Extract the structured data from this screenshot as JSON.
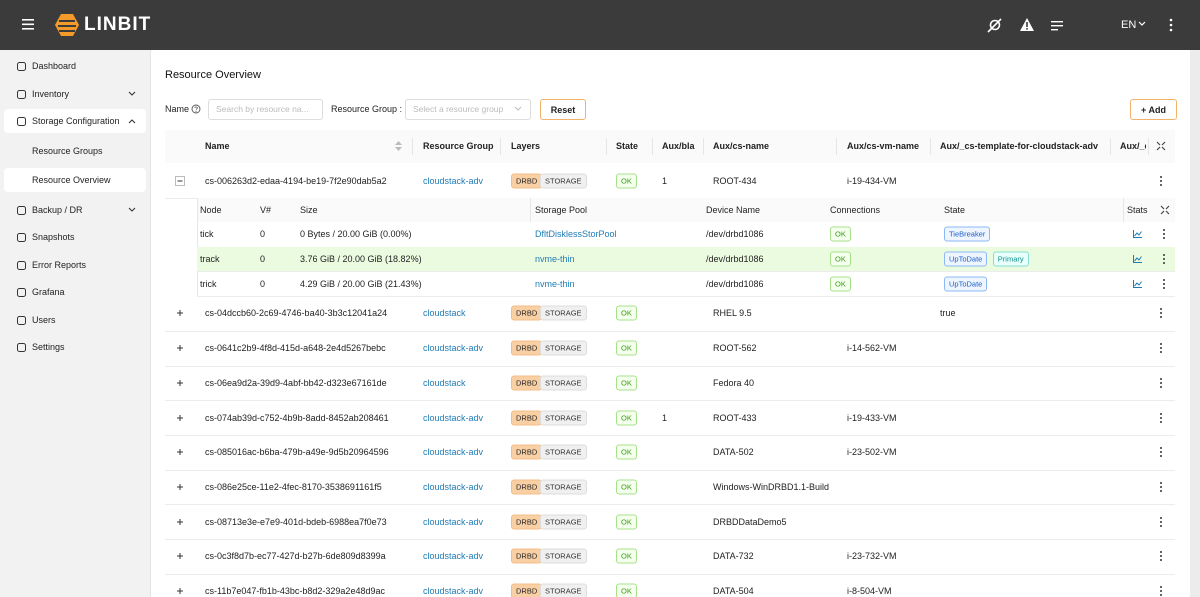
{
  "header": {
    "brand": "LINBIT",
    "language": "EN"
  },
  "sidebar": {
    "items": [
      {
        "label": "Dashboard"
      },
      {
        "label": "Inventory",
        "has_submenu": true
      },
      {
        "label": "Storage Configuration",
        "has_submenu": true,
        "children": [
          "Resource Groups",
          "Resource Overview"
        ]
      },
      {
        "label": "Backup / DR",
        "has_submenu": true
      },
      {
        "label": "Snapshots"
      },
      {
        "label": "Error Reports"
      },
      {
        "label": "Grafana"
      },
      {
        "label": "Users"
      },
      {
        "label": "Settings"
      }
    ]
  },
  "page": {
    "title": "Resource Overview"
  },
  "filters": {
    "name_label": "Name",
    "name_placeholder": "Search by resource na...",
    "group_label": "Resource Group :",
    "group_placeholder": "Select a resource group",
    "reset": "Reset",
    "add": "+ Add"
  },
  "table": {
    "columns": [
      "Name",
      "Resource Group",
      "Layers",
      "State",
      "Aux/bla",
      "Aux/cs-name",
      "Aux/cs-vm-name",
      "Aux/_cs-template-for-cloudstack-adv",
      "Aux/_c"
    ],
    "rows": [
      {
        "name": "cs-006263d2-edaa-4194-be19-7f2e90dab5a2",
        "group": "cloudstack-adv",
        "layers": [
          "DRBD",
          "STORAGE"
        ],
        "state": "OK",
        "aux_bla": "1",
        "cs_name": "ROOT-434",
        "cs_vm_name": "i-19-434-VM",
        "details": {
          "columns": [
            "Node",
            "V#",
            "Size",
            "Storage Pool",
            "Device Name",
            "Connections",
            "State",
            "Stats"
          ],
          "rows": [
            {
              "node": "tick",
              "volume": 0,
              "size": "0 Bytes / 20.00 GiB (0.00%)",
              "pool": "DfltDisklessStorPool",
              "device": "/dev/drbd1086",
              "connections": "OK",
              "states": [
                "TieBreaker"
              ]
            },
            {
              "node": "track",
              "volume": 0,
              "size": "3.76 GiB / 20.00 GiB (18.82%)",
              "pool": "nvme-thin",
              "device": "/dev/drbd1086",
              "connections": "OK",
              "states": [
                "UpToDate",
                "Primary"
              ]
            },
            {
              "node": "trick",
              "volume": 0,
              "size": "4.29 GiB / 20.00 GiB (21.43%)",
              "pool": "nvme-thin",
              "device": "/dev/drbd1086",
              "connections": "OK",
              "states": [
                "UpToDate"
              ]
            }
          ]
        }
      },
      {
        "name": "cs-04dccb60-2c69-4746-ba40-3b3c12041a24",
        "group": "cloudstack",
        "layers": [
          "DRBD",
          "STORAGE"
        ],
        "state": "OK",
        "cs_name": "RHEL 9.5",
        "cs_template": "true"
      },
      {
        "name": "cs-0641c2b9-4f8d-415d-a648-2e4d5267bebc",
        "group": "cloudstack-adv",
        "layers": [
          "DRBD",
          "STORAGE"
        ],
        "state": "OK",
        "cs_name": "ROOT-562",
        "cs_vm_name": "i-14-562-VM"
      },
      {
        "name": "cs-06ea9d2a-39d9-4abf-bb42-d323e67161de",
        "group": "cloudstack",
        "layers": [
          "DRBD",
          "STORAGE"
        ],
        "state": "OK",
        "cs_name": "Fedora 40"
      },
      {
        "name": "cs-074ab39d-c752-4b9b-8add-8452ab208461",
        "group": "cloudstack-adv",
        "layers": [
          "DRBD",
          "STORAGE"
        ],
        "state": "OK",
        "aux_bla": "1",
        "cs_name": "ROOT-433",
        "cs_vm_name": "i-19-433-VM"
      },
      {
        "name": "cs-085016ac-b6ba-479b-a49e-9d5b20964596",
        "group": "cloudstack-adv",
        "layers": [
          "DRBD",
          "STORAGE"
        ],
        "state": "OK",
        "cs_name": "DATA-502",
        "cs_vm_name": "i-23-502-VM"
      },
      {
        "name": "cs-086e25ce-11e2-4fec-8170-3538691161f5",
        "group": "cloudstack-adv",
        "layers": [
          "DRBD",
          "STORAGE"
        ],
        "state": "OK",
        "cs_name": "Windows-WinDRBD1.1-Build"
      },
      {
        "name": "cs-08713e3e-e7e9-401d-bdeb-6988ea7f0e73",
        "group": "cloudstack-adv",
        "layers": [
          "DRBD",
          "STORAGE"
        ],
        "state": "OK",
        "cs_name": "DRBDDataDemo5"
      },
      {
        "name": "cs-0c3f8d7b-ec77-427d-b27b-6de809d8399a",
        "group": "cloudstack-adv",
        "layers": [
          "DRBD",
          "STORAGE"
        ],
        "state": "OK",
        "cs_name": "DATA-732",
        "cs_vm_name": "i-23-732-VM"
      },
      {
        "name": "cs-11b7e047-fb1b-43bc-b8d2-329a2e48d9ac",
        "group": "cloudstack-adv",
        "layers": [
          "DRBD",
          "STORAGE"
        ],
        "state": "OK",
        "cs_name": "DATA-504",
        "cs_vm_name": "i-8-504-VM"
      }
    ]
  }
}
